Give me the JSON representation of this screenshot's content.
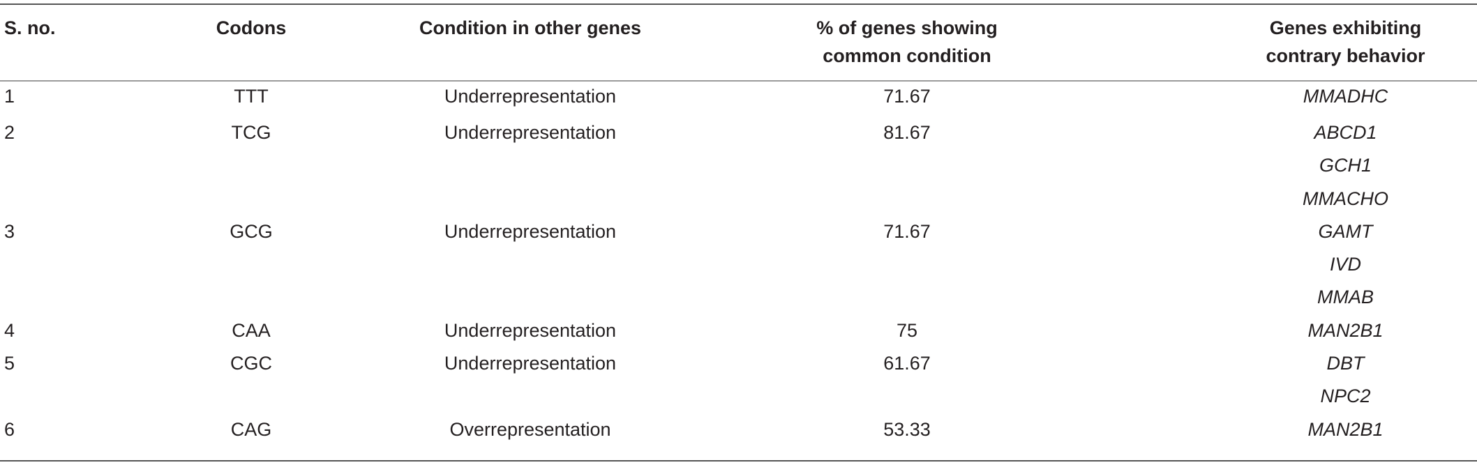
{
  "headers": {
    "sno": "S. no.",
    "codons": "Codons",
    "condition": "Condition in other genes",
    "percent_line1": "% of genes showing",
    "percent_line2": "common condition",
    "genes_line1": "Genes exhibiting",
    "genes_line2": "contrary behavior"
  },
  "rows": [
    {
      "sno": "1",
      "codon": "TTT",
      "condition": "Underrepresentation",
      "percent": "71.67",
      "gene": "MMADHC"
    },
    {
      "sno": "2",
      "codon": "TCG",
      "condition": "Underrepresentation",
      "percent": "81.67",
      "gene": "ABCD1"
    },
    {
      "sno": "",
      "codon": "",
      "condition": "",
      "percent": "",
      "gene": "GCH1"
    },
    {
      "sno": "",
      "codon": "",
      "condition": "",
      "percent": "",
      "gene": "MMACHO"
    },
    {
      "sno": "3",
      "codon": "GCG",
      "condition": "Underrepresentation",
      "percent": "71.67",
      "gene": "GAMT"
    },
    {
      "sno": "",
      "codon": "",
      "condition": "",
      "percent": "",
      "gene": "IVD"
    },
    {
      "sno": "",
      "codon": "",
      "condition": "",
      "percent": "",
      "gene": "MMAB"
    },
    {
      "sno": "4",
      "codon": "CAA",
      "condition": "Underrepresentation",
      "percent": "75",
      "gene": "MAN2B1"
    },
    {
      "sno": "5",
      "codon": "CGC",
      "condition": "Underrepresentation",
      "percent": "61.67",
      "gene": "DBT"
    },
    {
      "sno": "",
      "codon": "",
      "condition": "",
      "percent": "",
      "gene": "NPC2"
    },
    {
      "sno": "6",
      "codon": "CAG",
      "condition": "Overrepresentation",
      "percent": "53.33",
      "gene": "MAN2B1"
    }
  ]
}
